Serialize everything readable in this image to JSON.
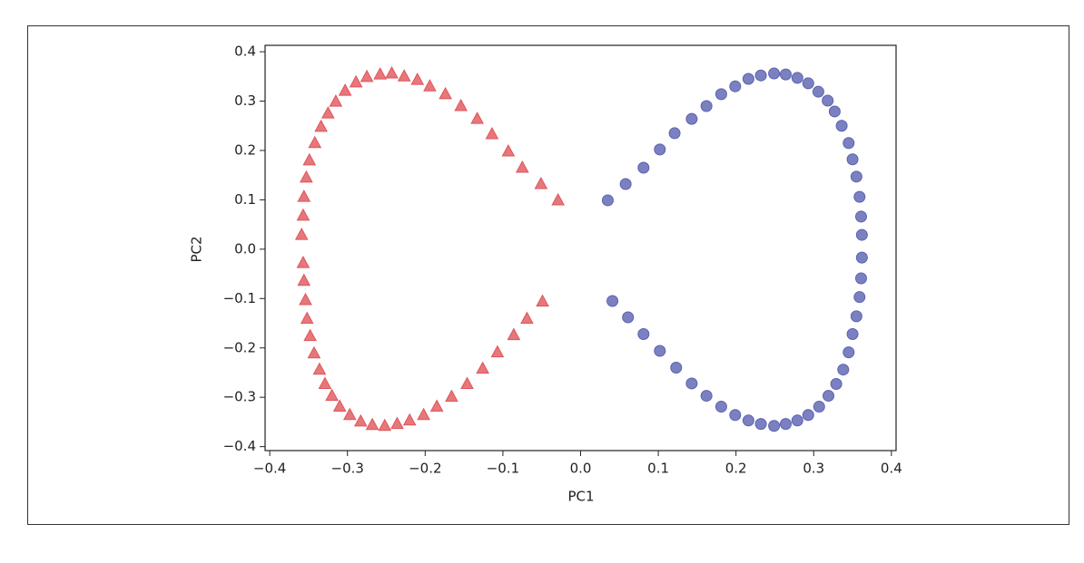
{
  "chart_data": {
    "type": "scatter",
    "xlabel": "PC1",
    "ylabel": "PC2",
    "xlim": [
      -0.406,
      0.406
    ],
    "ylim": [
      -0.408,
      0.413
    ],
    "xticks": [
      {
        "value": -0.4,
        "label": "−0.4"
      },
      {
        "value": -0.3,
        "label": "−0.3"
      },
      {
        "value": -0.2,
        "label": "−0.2"
      },
      {
        "value": -0.1,
        "label": "−0.1"
      },
      {
        "value": 0,
        "label": "0.0"
      },
      0.1,
      0.2,
      0.3,
      0.4
    ],
    "yticks": [
      {
        "value": -0.4,
        "label": "−0.4"
      },
      {
        "value": -0.3,
        "label": "−0.3"
      },
      {
        "value": -0.2,
        "label": "−0.2"
      },
      {
        "value": -0.1,
        "label": "−0.1"
      },
      {
        "value": 0,
        "label": "0.0"
      },
      0.1,
      0.2,
      0.3,
      0.4
    ],
    "series": [
      {
        "color": "#e0555a",
        "marker": "triangle",
        "x": [
          -0.029,
          -0.051,
          -0.075,
          -0.093,
          -0.114,
          -0.133,
          -0.154,
          -0.174,
          -0.194,
          -0.21,
          -0.227,
          -0.243,
          -0.258,
          -0.275,
          -0.289,
          -0.303,
          -0.315,
          -0.325,
          -0.334,
          -0.342,
          -0.349,
          -0.353,
          -0.356,
          -0.357,
          -0.359,
          -0.357,
          -0.356,
          -0.354,
          -0.352,
          -0.348,
          -0.343,
          -0.336,
          -0.329,
          -0.32,
          -0.31,
          -0.297,
          -0.283,
          -0.268,
          -0.252,
          -0.236,
          -0.22,
          -0.202,
          -0.185,
          -0.166,
          -0.146,
          -0.126,
          -0.107,
          -0.086,
          -0.069,
          -0.049
        ],
        "values": [
          0.099,
          0.132,
          0.165,
          0.198,
          0.233,
          0.264,
          0.29,
          0.314,
          0.33,
          0.343,
          0.35,
          0.356,
          0.354,
          0.349,
          0.338,
          0.321,
          0.299,
          0.275,
          0.248,
          0.215,
          0.18,
          0.145,
          0.106,
          0.068,
          0.029,
          -0.028,
          -0.064,
          -0.103,
          -0.141,
          -0.176,
          -0.211,
          -0.244,
          -0.273,
          -0.297,
          -0.319,
          -0.336,
          -0.349,
          -0.356,
          -0.358,
          -0.354,
          -0.347,
          -0.336,
          -0.319,
          -0.299,
          -0.273,
          -0.242,
          -0.209,
          -0.174,
          -0.141,
          -0.106
        ]
      },
      {
        "color": "#5a62b0",
        "marker": "circle",
        "x": [
          0.035,
          0.058,
          0.081,
          0.102,
          0.121,
          0.143,
          0.162,
          0.181,
          0.199,
          0.216,
          0.232,
          0.249,
          0.264,
          0.279,
          0.293,
          0.306,
          0.318,
          0.327,
          0.336,
          0.345,
          0.35,
          0.355,
          0.359,
          0.361,
          0.362,
          0.362,
          0.361,
          0.359,
          0.355,
          0.35,
          0.345,
          0.338,
          0.329,
          0.319,
          0.307,
          0.293,
          0.279,
          0.264,
          0.249,
          0.232,
          0.216,
          0.199,
          0.181,
          0.162,
          0.143,
          0.123,
          0.102,
          0.081,
          0.061,
          0.041
        ],
        "values": [
          0.099,
          0.132,
          0.165,
          0.202,
          0.235,
          0.264,
          0.29,
          0.314,
          0.33,
          0.345,
          0.352,
          0.356,
          0.354,
          0.347,
          0.336,
          0.319,
          0.301,
          0.279,
          0.25,
          0.215,
          0.182,
          0.147,
          0.106,
          0.066,
          0.029,
          -0.017,
          -0.059,
          -0.097,
          -0.136,
          -0.172,
          -0.209,
          -0.244,
          -0.273,
          -0.297,
          -0.319,
          -0.336,
          -0.347,
          -0.354,
          -0.358,
          -0.354,
          -0.347,
          -0.336,
          -0.319,
          -0.297,
          -0.272,
          -0.24,
          -0.206,
          -0.172,
          -0.138,
          -0.105
        ]
      }
    ]
  }
}
